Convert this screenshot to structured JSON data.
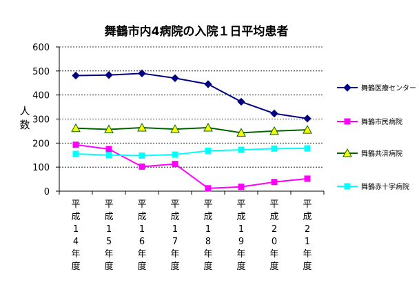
{
  "chart_data": {
    "type": "line",
    "title": "舞鶴市内4病院の入院１日平均患者",
    "ylabel": "人数",
    "ylim": [
      0,
      600
    ],
    "yticks": [
      0,
      100,
      200,
      300,
      400,
      500,
      600
    ],
    "grid": true,
    "legend_position": "right",
    "categories": [
      "平成14年度",
      "平成15年度",
      "平成16年度",
      "平成17年度",
      "平成18年度",
      "平成19年度",
      "平成20年度",
      "平成21年度"
    ],
    "series": [
      {
        "name": "舞鶴医療センター",
        "color": "#000080",
        "marker": "diamond",
        "values": [
          481,
          483,
          490,
          470,
          445,
          372,
          323,
          302
        ]
      },
      {
        "name": "舞鶴市民病院",
        "color": "#ff00ff",
        "marker": "square",
        "values": [
          193,
          175,
          102,
          113,
          12,
          18,
          38,
          52
        ]
      },
      {
        "name": "舞鶴共済病院",
        "color": "#006400",
        "marker": "triangle",
        "marker_fill": "#ffff00",
        "values": [
          262,
          257,
          264,
          258,
          264,
          243,
          250,
          255
        ]
      },
      {
        "name": "舞鶴赤十字病院",
        "color": "#00ffff",
        "marker": "square",
        "values": [
          155,
          150,
          148,
          152,
          168,
          172,
          177,
          178
        ]
      }
    ]
  }
}
